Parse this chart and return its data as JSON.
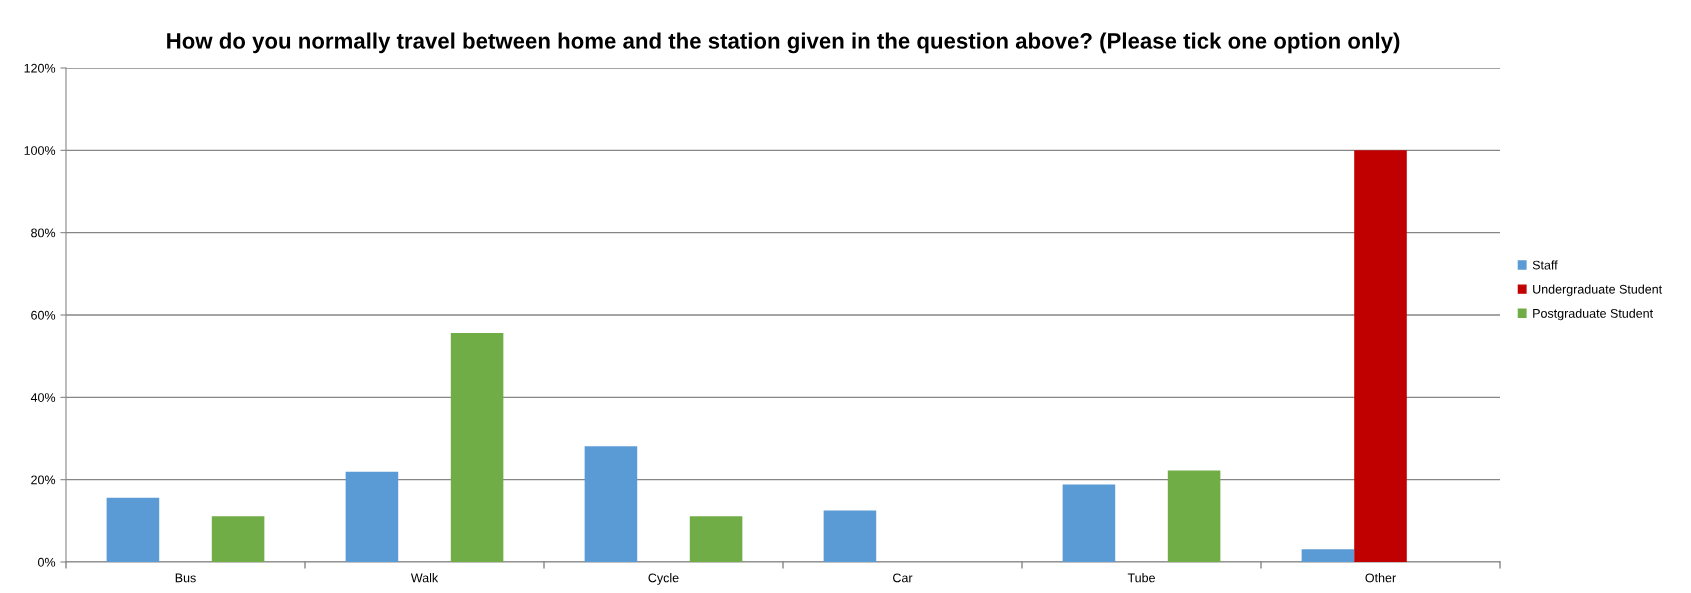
{
  "chart_data": {
    "type": "bar",
    "title": "How do you normally travel between home and the station given in the question above? (Please tick one option only)",
    "categories": [
      "Bus",
      "Walk",
      "Cycle",
      "Car",
      "Tube",
      "Other"
    ],
    "series": [
      {
        "name": "Staff",
        "color": "#5b9bd5",
        "values": [
          15.6,
          21.9,
          28.1,
          12.5,
          18.8,
          3.1
        ]
      },
      {
        "name": "Undergraduate Student",
        "color": "#c00000",
        "values": [
          0,
          0,
          0,
          0,
          0,
          100
        ]
      },
      {
        "name": "Postgraduate Student",
        "color": "#70ad47",
        "values": [
          11.1,
          55.6,
          11.1,
          0,
          22.2,
          0
        ]
      }
    ],
    "ylim": [
      0,
      120
    ],
    "yticks": [
      {
        "value": 0,
        "label": "0%"
      },
      {
        "value": 20,
        "label": "20%"
      },
      {
        "value": 40,
        "label": "40%"
      },
      {
        "value": 60,
        "label": "60%"
      },
      {
        "value": 80,
        "label": "80%"
      },
      {
        "value": 100,
        "label": "100%"
      },
      {
        "value": 120,
        "label": "120%"
      }
    ],
    "grid": "y",
    "legend": "right"
  }
}
